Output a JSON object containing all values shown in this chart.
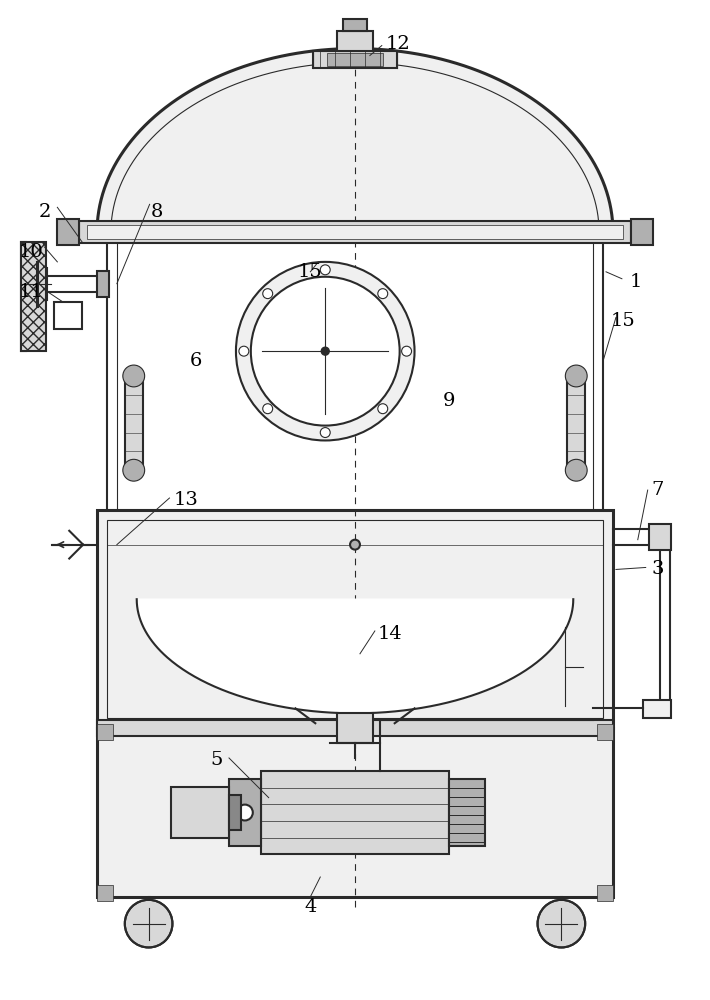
{
  "bg": "white",
  "lc": "#2a2a2a",
  "lc_light": "#555555",
  "fc_white": "#ffffff",
  "fc_light": "#f0f0f0",
  "fc_mid": "#d8d8d8",
  "fc_dark": "#b0b0b0",
  "fc_very_dark": "#888888",
  "lw_main": 1.5,
  "lw_thin": 0.8,
  "lw_thick": 2.2,
  "label_fs": 14,
  "label_fs_sm": 12
}
